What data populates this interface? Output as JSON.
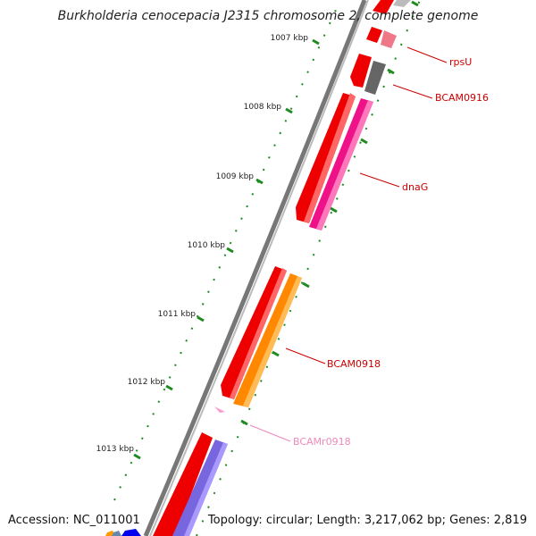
{
  "title": "Burkholderia cenocepacia J2315 chromosome 2, complete genome",
  "accession": "Accession: NC_011001",
  "summary": "Topology: circular; Length: 3,217,062 bp; Genes: 2,819",
  "colors": {
    "backbone": "#888888",
    "tick": "#1f8a1f",
    "gene_label": "#cc0000",
    "rna_label": "#ee88bb"
  },
  "scale_ticks": [
    "1007 kbp",
    "1008 kbp",
    "1009 kbp",
    "1010 kbp",
    "1011 kbp",
    "1012 kbp",
    "1013 kbp"
  ],
  "gene_labels": [
    {
      "name": "rpsU",
      "color": "#cc0000"
    },
    {
      "name": "BCAM0916",
      "color": "#cc0000"
    },
    {
      "name": "dnaG",
      "color": "#cc0000"
    },
    {
      "name": "BCAM0918",
      "color": "#cc0000"
    },
    {
      "name": "BCAMr0918",
      "color": "#ee88bb"
    }
  ],
  "features": [
    {
      "name": "rpsU",
      "strand": "outer",
      "color": "#ee4466"
    },
    {
      "name": "BCAM0916",
      "strand": "outer",
      "color": "#666666"
    },
    {
      "name": "dnaG",
      "strand": "outer",
      "color": "#ee1188"
    },
    {
      "name": "BCAM0918",
      "strand": "outer",
      "color": "#ff8800"
    },
    {
      "name": "BCAMr0918",
      "strand": "inner",
      "color": "#ff99cc"
    }
  ]
}
